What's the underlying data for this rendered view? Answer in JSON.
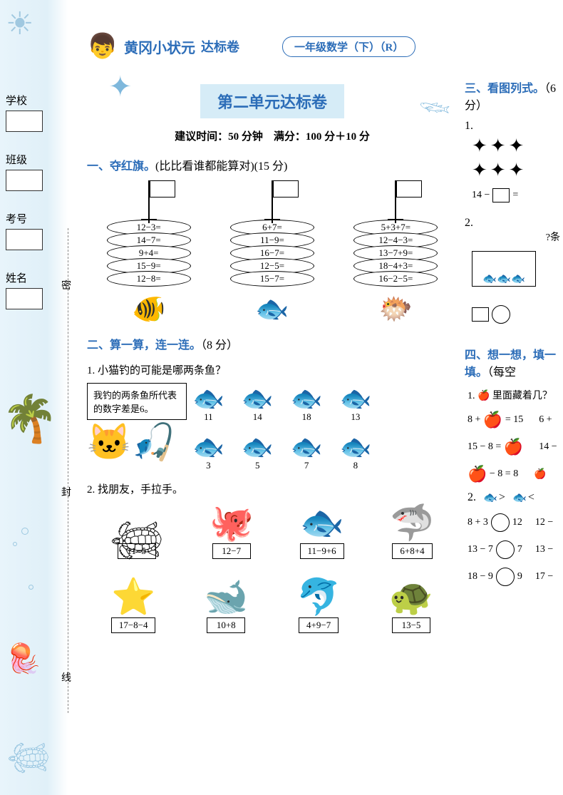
{
  "header": {
    "brand": "黄冈小状元",
    "brand_sub": "达标卷",
    "grade": "一年级数学（下）（R）"
  },
  "sidebar": {
    "fields": [
      {
        "label": "学校"
      },
      {
        "label": "班级"
      },
      {
        "label": "考号"
      },
      {
        "label": "姓名"
      }
    ],
    "fold_labels": [
      "密",
      "封",
      "线"
    ]
  },
  "title": "第二单元达标卷",
  "subtitle": "建议时间：50 分钟　满分：100 分＋10 分",
  "section1": {
    "heading_blue": "一、夺红旗。",
    "heading_rest": "(比比看谁都能算对)(15 分)",
    "cols": [
      [
        "12−3=",
        "14−7=",
        "9+4=",
        "15−9=",
        "12−8="
      ],
      [
        "6+7=",
        "11−9=",
        "16−7=",
        "12−5=",
        "15−7="
      ],
      [
        "5+3+7=",
        "12−4−3=",
        "13−7+9=",
        "18−4+3=",
        "16−2−5="
      ]
    ]
  },
  "section2": {
    "heading_blue": "二、算一算，连一连。",
    "heading_rest": "（8 分）",
    "q1_label": "1. 小猫钓的可能是哪两条鱼？",
    "speech": "我钓的两条鱼所代表的数字差是6。",
    "fish_top": [
      "11",
      "14",
      "18",
      "13"
    ],
    "fish_bottom": [
      "3",
      "5",
      "7",
      "8"
    ],
    "q2_label": "2. 找朋友，手拉手。",
    "row1": [
      {
        "icon": "seahorse",
        "expr": "11−5"
      },
      {
        "icon": "octopus",
        "expr": "12−7"
      },
      {
        "icon": "fish",
        "expr": "11−9+6"
      },
      {
        "icon": "shark",
        "expr": "6+8+4"
      }
    ],
    "row2": [
      {
        "icon": "starfish",
        "expr": "17−8−4"
      },
      {
        "icon": "whale",
        "expr": "10+8"
      },
      {
        "icon": "dolphin",
        "expr": "4+9−7"
      },
      {
        "icon": "turtle",
        "expr": "13−5"
      }
    ]
  },
  "section3": {
    "heading_blue": "三、看图列式。",
    "heading_rest": "（6 分）",
    "q1_num": "1.",
    "eq1_left": "14 −",
    "eq1_mid": "=",
    "q2_num": "2.",
    "q2_hint": "?条"
  },
  "section4": {
    "heading_blue": "四、想一想，填一填。",
    "heading_rest": "（每空",
    "q1": "1. 🍎 里面藏着几？",
    "rows": [
      {
        "a": "8 + 🍎 = 15",
        "b": "6 +"
      },
      {
        "a": "15 − 8 = 🍎",
        "b": "14 −"
      },
      {
        "a": "🍎 − 8 = 8",
        "b": "🍎"
      }
    ],
    "q2_num": "2.",
    "compare": [
      {
        "a": "8 + 3",
        "b": "12",
        "c": "12 −"
      },
      {
        "a": "13 − 7",
        "b": "7",
        "c": "13 −"
      },
      {
        "a": "18 − 9",
        "b": "9",
        "c": "17 −"
      }
    ]
  },
  "colors": {
    "blue": "#2c6db8",
    "light_blue_bg": "#d6ecf7",
    "margin_bg": "#e0f0f8"
  }
}
